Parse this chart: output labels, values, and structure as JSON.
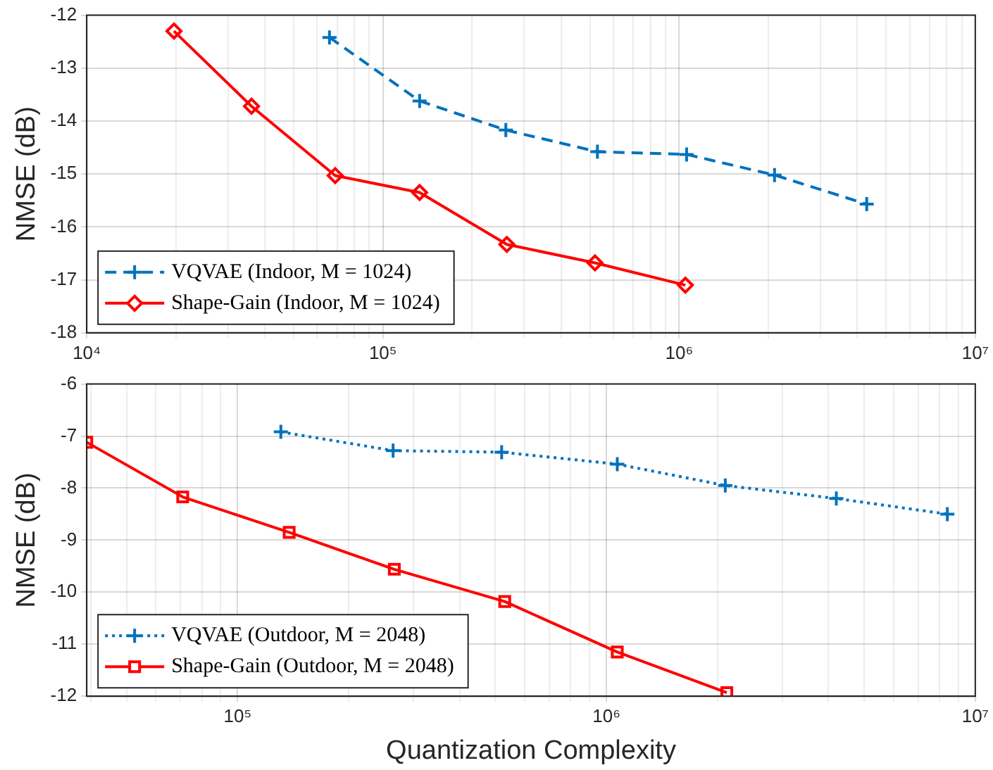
{
  "chart_data": [
    {
      "type": "line",
      "ylabel": "NMSE (dB)",
      "log": "x",
      "grid": true,
      "legend": "bottom left",
      "xlim": [
        10000,
        10000000
      ],
      "ylim": [
        -18,
        -12
      ],
      "yticks": [
        -18,
        -17,
        -16,
        -15,
        -14,
        -13,
        -12
      ],
      "xticks": [
        {
          "value": 10000,
          "label": "10⁴"
        },
        {
          "value": 20000,
          "label": null
        },
        {
          "value": 30000,
          "label": null
        },
        {
          "value": 40000,
          "label": null
        },
        {
          "value": 50000,
          "label": null
        },
        {
          "value": 60000,
          "label": null
        },
        {
          "value": 70000,
          "label": null
        },
        {
          "value": 80000,
          "label": null
        },
        {
          "value": 90000,
          "label": null
        },
        {
          "value": 100000,
          "label": "10⁵"
        },
        {
          "value": 200000,
          "label": null
        },
        {
          "value": 300000,
          "label": null
        },
        {
          "value": 400000,
          "label": null
        },
        {
          "value": 500000,
          "label": null
        },
        {
          "value": 600000,
          "label": null
        },
        {
          "value": 700000,
          "label": null
        },
        {
          "value": 800000,
          "label": null
        },
        {
          "value": 900000,
          "label": null
        },
        {
          "value": 1000000,
          "label": "10⁶"
        },
        {
          "value": 2000000,
          "label": null
        },
        {
          "value": 3000000,
          "label": null
        },
        {
          "value": 4000000,
          "label": null
        },
        {
          "value": 5000000,
          "label": null
        },
        {
          "value": 6000000,
          "label": null
        },
        {
          "value": 7000000,
          "label": null
        },
        {
          "value": 8000000,
          "label": null
        },
        {
          "value": 9000000,
          "label": null
        },
        {
          "value": 10000000,
          "label": "10⁷"
        }
      ],
      "series": [
        {
          "name": "VQVAE (Indoor, M = 1024)",
          "color": "#0072bd",
          "marker": "cross",
          "line_style": "dashed",
          "x": [
            66000,
            133000,
            260000,
            530000,
            1060000,
            2100000,
            4300000
          ],
          "values": [
            -12.42,
            -13.62,
            -14.17,
            -14.58,
            -14.63,
            -15.02,
            -15.57
          ]
        },
        {
          "name": "Shape-Gain (Indoor, M = 1024)",
          "color": "#ff0000",
          "marker": "diamond",
          "line_style": "solid",
          "x": [
            19700,
            36000,
            69000,
            133000,
            262000,
            520000,
            1050000
          ],
          "values": [
            -12.3,
            -13.72,
            -15.03,
            -15.35,
            -16.33,
            -16.68,
            -17.1
          ]
        }
      ]
    },
    {
      "type": "line",
      "xlabel": "Quantization Complexity",
      "ylabel": "NMSE (dB)",
      "log": "x",
      "grid": true,
      "legend": "bottom left",
      "xlim": [
        39000,
        10000000
      ],
      "ylim": [
        -12,
        -6
      ],
      "yticks": [
        -12,
        -11,
        -10,
        -9,
        -8,
        -7,
        -6
      ],
      "xticks": [
        {
          "value": 40000,
          "label": null
        },
        {
          "value": 50000,
          "label": null
        },
        {
          "value": 60000,
          "label": null
        },
        {
          "value": 70000,
          "label": null
        },
        {
          "value": 80000,
          "label": null
        },
        {
          "value": 90000,
          "label": null
        },
        {
          "value": 100000,
          "label": "10⁵"
        },
        {
          "value": 200000,
          "label": null
        },
        {
          "value": 300000,
          "label": null
        },
        {
          "value": 400000,
          "label": null
        },
        {
          "value": 500000,
          "label": null
        },
        {
          "value": 600000,
          "label": null
        },
        {
          "value": 700000,
          "label": null
        },
        {
          "value": 800000,
          "label": null
        },
        {
          "value": 900000,
          "label": null
        },
        {
          "value": 1000000,
          "label": "10⁶"
        },
        {
          "value": 2000000,
          "label": null
        },
        {
          "value": 3000000,
          "label": null
        },
        {
          "value": 4000000,
          "label": null
        },
        {
          "value": 5000000,
          "label": null
        },
        {
          "value": 6000000,
          "label": null
        },
        {
          "value": 7000000,
          "label": null
        },
        {
          "value": 8000000,
          "label": null
        },
        {
          "value": 9000000,
          "label": null
        },
        {
          "value": 10000000,
          "label": "10⁷"
        }
      ],
      "series": [
        {
          "name": "VQVAE (Outdoor, M = 2048)",
          "color": "#0072bd",
          "marker": "cross",
          "line_style": "dotted",
          "x": [
            131000,
            264000,
            520000,
            1070000,
            2100000,
            4200000,
            8400000
          ],
          "values": [
            -6.92,
            -7.28,
            -7.31,
            -7.54,
            -7.95,
            -8.2,
            -8.5
          ]
        },
        {
          "name": "Shape-Gain (Outdoor, M = 2048)",
          "color": "#ff0000",
          "marker": "square",
          "line_style": "solid",
          "x": [
            39000,
            71000,
            138000,
            266000,
            530000,
            1070000,
            2120000
          ],
          "values": [
            -7.12,
            -8.17,
            -8.85,
            -9.56,
            -10.18,
            -11.15,
            -11.93
          ]
        }
      ]
    }
  ]
}
